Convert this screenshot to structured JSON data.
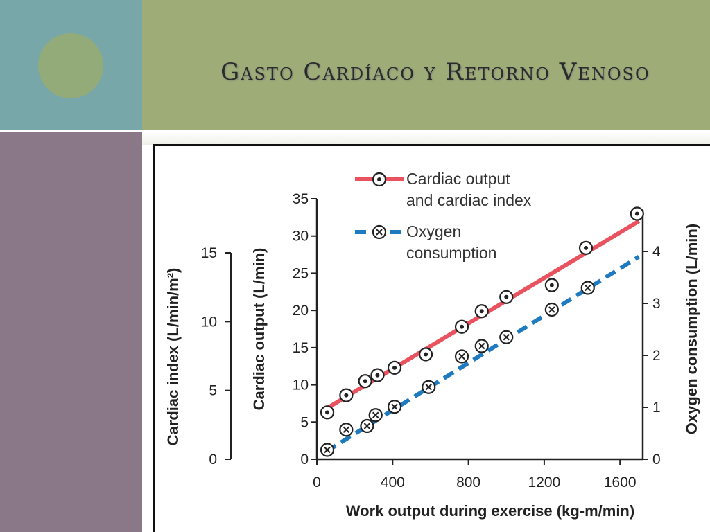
{
  "slide": {
    "title": "Gasto Cardíaco y Retorno Venoso"
  },
  "colors": {
    "teal": "#78a7a9",
    "olive": "#9ead77",
    "mauve": "#8a7788",
    "cardiac_line": "#e8535f",
    "oxygen_line": "#1f7bc0"
  },
  "chart_data": {
    "type": "line",
    "xlabel": "Work output during exercise (kg-m/min)",
    "ylabel_left_outer": "Cardiac index (L/min/m²)",
    "ylabel_left_inner": "Cardiac output (L/min)",
    "ylabel_right": "Oxygen consumption (L/min)",
    "x_ticks": [
      "0",
      "400",
      "800",
      "1200",
      "1600"
    ],
    "xlim": [
      0,
      1720
    ],
    "cardiac_output_ticks": [
      "0",
      "5",
      "10",
      "15",
      "20",
      "25",
      "30",
      "35"
    ],
    "cardiac_output_lim": [
      0,
      35
    ],
    "cardiac_index_ticks": [
      "0",
      "5",
      "10",
      "15"
    ],
    "oxygen_ticks": [
      "0",
      "1",
      "2",
      "3",
      "4"
    ],
    "oxygen_lim": [
      0,
      4.8
    ],
    "legend": [
      {
        "label_line1": "Cardiac output",
        "label_line2": "and cardiac index",
        "marker": "dot"
      },
      {
        "label_line1": "Oxygen",
        "label_line2": "consumption",
        "marker": "cross"
      }
    ],
    "series": [
      {
        "name": "Cardiac output and cardiac index",
        "axis": "cardiac_output",
        "fit": [
          [
            50,
            6.8
          ],
          [
            1700,
            32
          ]
        ],
        "points": [
          [
            55,
            6.3
          ],
          [
            155,
            8.6
          ],
          [
            255,
            10.5
          ],
          [
            320,
            11.3
          ],
          [
            410,
            12.3
          ],
          [
            575,
            14.1
          ],
          [
            765,
            17.8
          ],
          [
            870,
            19.9
          ],
          [
            1000,
            21.8
          ],
          [
            1240,
            23.4
          ],
          [
            1420,
            28.4
          ],
          [
            1690,
            33
          ]
        ]
      },
      {
        "name": "Oxygen consumption",
        "axis": "oxygen",
        "fit": [
          [
            50,
            0.15
          ],
          [
            1700,
            3.9
          ]
        ],
        "points": [
          [
            55,
            0.18
          ],
          [
            155,
            0.57
          ],
          [
            265,
            0.64
          ],
          [
            310,
            0.85
          ],
          [
            410,
            1.01
          ],
          [
            590,
            1.39
          ],
          [
            765,
            1.98
          ],
          [
            870,
            2.18
          ],
          [
            1000,
            2.35
          ],
          [
            1240,
            2.88
          ],
          [
            1430,
            3.3
          ]
        ]
      }
    ]
  }
}
